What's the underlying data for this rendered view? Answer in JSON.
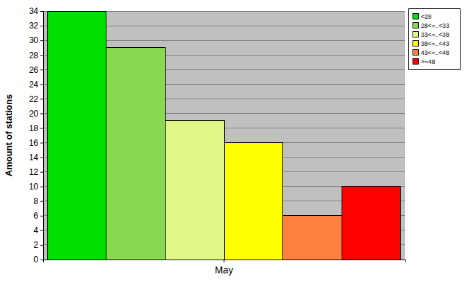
{
  "chart_data": {
    "type": "bar",
    "categories": [
      "May"
    ],
    "y_label": "Amount of stations",
    "series": [
      {
        "name": "<28",
        "color": "#00e000",
        "values": [
          34
        ]
      },
      {
        "name": "28<=..<33",
        "color": "#88d850",
        "values": [
          29
        ]
      },
      {
        "name": "33<=..<38",
        "color": "#e0f888",
        "values": [
          19
        ]
      },
      {
        "name": "38<=..<43",
        "color": "#ffff00",
        "values": [
          16
        ]
      },
      {
        "name": "43<=..<48",
        "color": "#ff8040",
        "values": [
          6
        ]
      },
      {
        "name": ">=48",
        "color": "#ff0000",
        "values": [
          10
        ]
      }
    ],
    "ylim": [
      0,
      34
    ],
    "yticks": [
      0,
      2,
      4,
      6,
      8,
      10,
      12,
      14,
      16,
      18,
      20,
      22,
      24,
      26,
      28,
      30,
      32,
      34
    ],
    "grid": true,
    "legend": "top-right"
  }
}
